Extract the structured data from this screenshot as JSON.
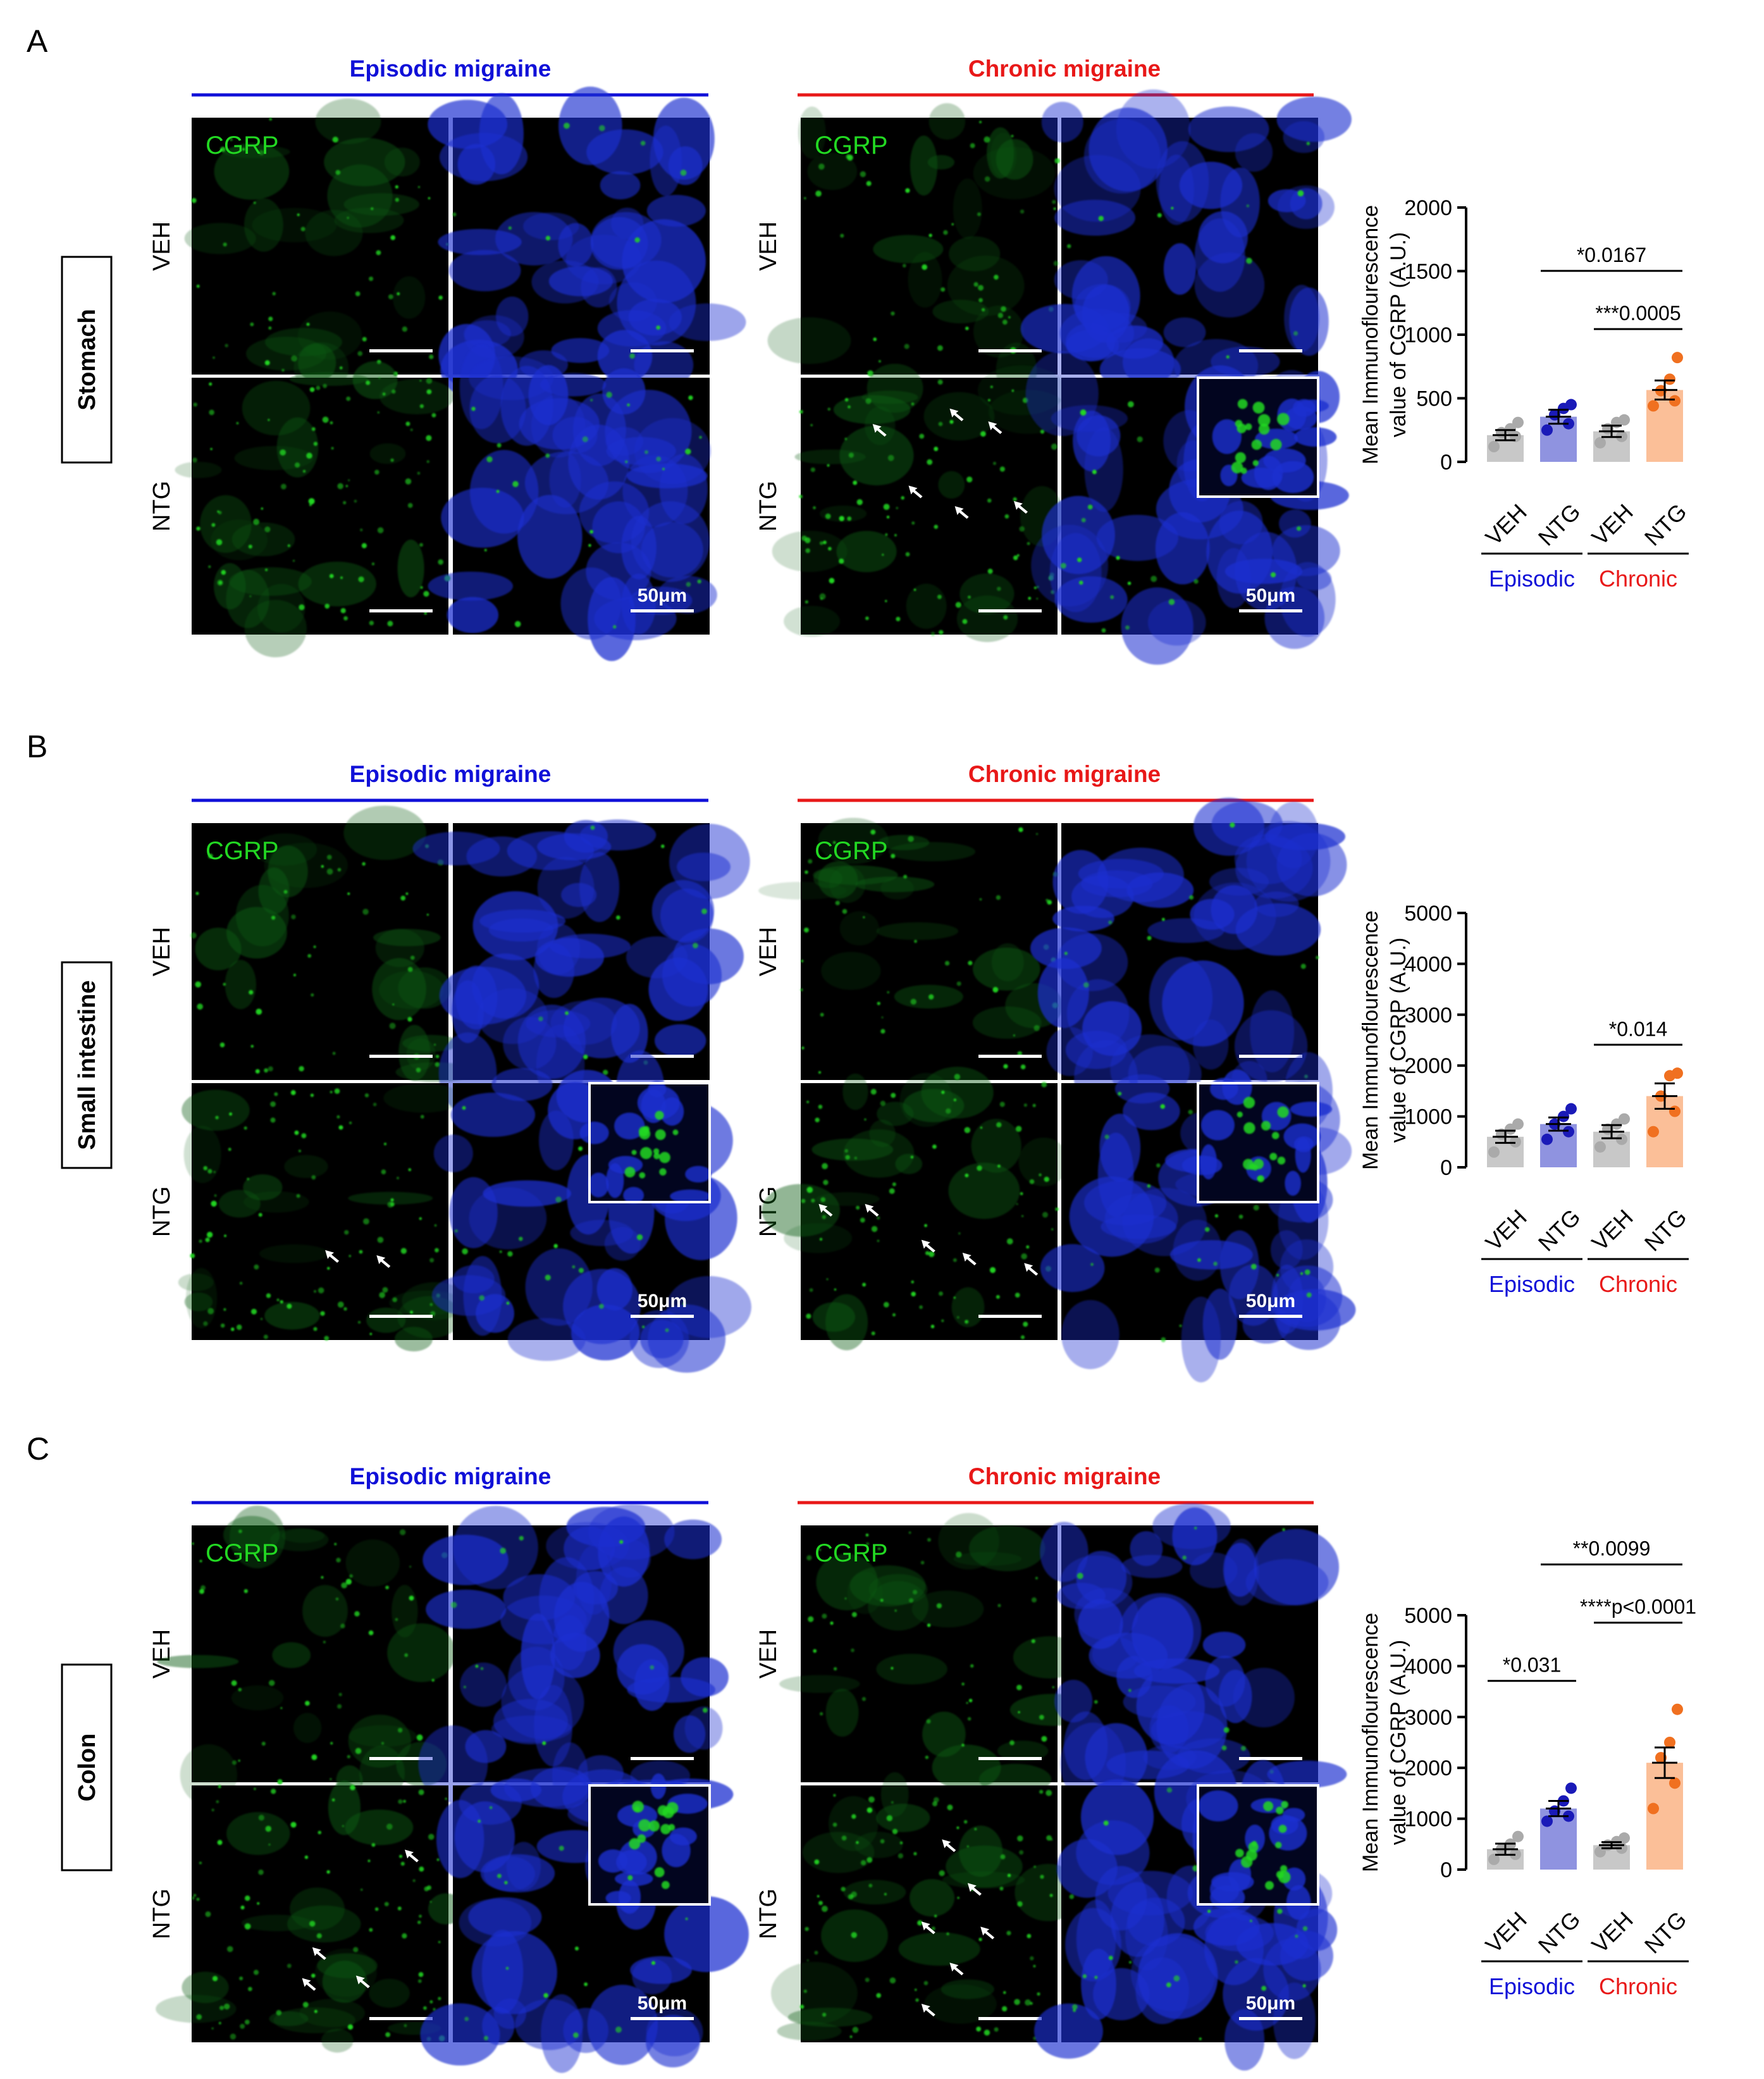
{
  "colors": {
    "episodic_header": "#1010d8",
    "chronic_header": "#e81818",
    "episodic_veh_bar": "#c8c8c8",
    "episodic_ntg_bar": "#8f93e0",
    "chronic_veh_bar": "#c8c8c8",
    "chronic_ntg_bar": "#fbbf98",
    "episodic_ntg_dot": "#1a1ab8",
    "chronic_ntg_dot": "#f07020",
    "veh_dot": "#aaaaaa",
    "cgrp_green": "#22d822",
    "dapi_blue": "#1c2fd0"
  },
  "common": {
    "episodic_header": "Episodic migraine",
    "chronic_header": "Chronic migraine",
    "veh_row": "VEH",
    "ntg_row": "NTG",
    "cgrp_label": "CGRP",
    "scale_label": "50μm",
    "ylabel_line1": "Mean Immunoflourescence",
    "ylabel_line2": "value of CGRP (A.U.)",
    "group_episodic": "Episodic",
    "group_chronic": "Chronic",
    "x_categories": [
      "VEH",
      "NTG",
      "VEH",
      "NTG"
    ]
  },
  "panels": [
    {
      "letter": "A",
      "tissue": "Stomach",
      "inset": "chronic",
      "arrows_episodic": [],
      "arrows_chronic": [
        [
          0.28,
          0.18
        ],
        [
          0.58,
          0.12
        ],
        [
          0.73,
          0.17
        ],
        [
          0.42,
          0.42
        ],
        [
          0.6,
          0.5
        ],
        [
          0.83,
          0.48
        ]
      ]
    },
    {
      "letter": "B",
      "tissue": "Small intestine",
      "inset": "both",
      "arrows_episodic": [
        [
          0.52,
          0.65
        ],
        [
          0.72,
          0.67
        ]
      ],
      "arrows_chronic": [
        [
          0.07,
          0.47
        ],
        [
          0.25,
          0.47
        ],
        [
          0.47,
          0.61
        ],
        [
          0.63,
          0.66
        ],
        [
          0.87,
          0.7
        ]
      ]
    },
    {
      "letter": "C",
      "tissue": "Colon",
      "inset": "both",
      "arrows_episodic": [
        [
          0.83,
          0.25
        ],
        [
          0.47,
          0.63
        ],
        [
          0.43,
          0.75
        ],
        [
          0.64,
          0.74
        ]
      ],
      "arrows_chronic": [
        [
          0.55,
          0.21
        ],
        [
          0.65,
          0.38
        ],
        [
          0.47,
          0.53
        ],
        [
          0.7,
          0.55
        ],
        [
          0.58,
          0.69
        ],
        [
          0.47,
          0.85
        ]
      ]
    }
  ],
  "chart_data": [
    {
      "type": "bar",
      "title": "",
      "xlabel": "",
      "ylabel": "Mean Immunoflourescence value of CGRP (A.U.)",
      "categories": [
        "VEH",
        "NTG",
        "VEH",
        "NTG"
      ],
      "groups": [
        "Episodic",
        "Episodic",
        "Chronic",
        "Chronic"
      ],
      "ylim": [
        0,
        2000
      ],
      "yticks": [
        0,
        500,
        1000,
        1500,
        2000
      ],
      "means": [
        210,
        355,
        240,
        565
      ],
      "sem": [
        40,
        55,
        45,
        75
      ],
      "points": [
        [
          120,
          200,
          230,
          260,
          310
        ],
        [
          250,
          300,
          370,
          420,
          450
        ],
        [
          150,
          200,
          260,
          310,
          330
        ],
        [
          440,
          480,
          560,
          650,
          820
        ]
      ],
      "comparisons": [
        {
          "label": "*0.0167",
          "from": 1,
          "to": 3
        },
        {
          "label": "***0.0005",
          "from": 2,
          "to": 3
        }
      ]
    },
    {
      "type": "bar",
      "title": "",
      "xlabel": "",
      "ylabel": "Mean Immunoflourescence value of CGRP (A.U.)",
      "categories": [
        "VEH",
        "NTG",
        "VEH",
        "NTG"
      ],
      "groups": [
        "Episodic",
        "Episodic",
        "Chronic",
        "Chronic"
      ],
      "ylim": [
        0,
        5000
      ],
      "yticks": [
        0,
        1000,
        2000,
        3000,
        4000,
        5000
      ],
      "means": [
        600,
        850,
        700,
        1400
      ],
      "sem": [
        120,
        130,
        130,
        250
      ],
      "points": [
        [
          300,
          500,
          650,
          750,
          850
        ],
        [
          550,
          700,
          850,
          1000,
          1150
        ],
        [
          400,
          550,
          750,
          850,
          950
        ],
        [
          700,
          1100,
          1400,
          1800,
          1850
        ]
      ],
      "comparisons": [
        {
          "label": "*0.014",
          "from": 2,
          "to": 3
        }
      ]
    },
    {
      "type": "bar",
      "title": "",
      "xlabel": "",
      "ylabel": "Mean Immunoflourescence value of CGRP (A.U.)",
      "categories": [
        "VEH",
        "NTG",
        "VEH",
        "NTG"
      ],
      "groups": [
        "Episodic",
        "Episodic",
        "Chronic",
        "Chronic"
      ],
      "ylim": [
        0,
        5000
      ],
      "yticks": [
        0,
        1000,
        2000,
        3000,
        4000,
        5000
      ],
      "means": [
        400,
        1200,
        480,
        2100
      ],
      "sem": [
        110,
        150,
        60,
        300
      ],
      "points": [
        [
          200,
          300,
          400,
          500,
          650
        ],
        [
          950,
          1050,
          1150,
          1350,
          1600
        ],
        [
          350,
          420,
          480,
          550,
          620
        ],
        [
          1200,
          1700,
          2200,
          2500,
          3150
        ]
      ],
      "comparisons": [
        {
          "label": "*0.031",
          "from": 0,
          "to": 1
        },
        {
          "label": "**0.0099",
          "from": 1,
          "to": 3
        },
        {
          "label": "****p<0.0001",
          "from": 2,
          "to": 3
        }
      ]
    }
  ]
}
